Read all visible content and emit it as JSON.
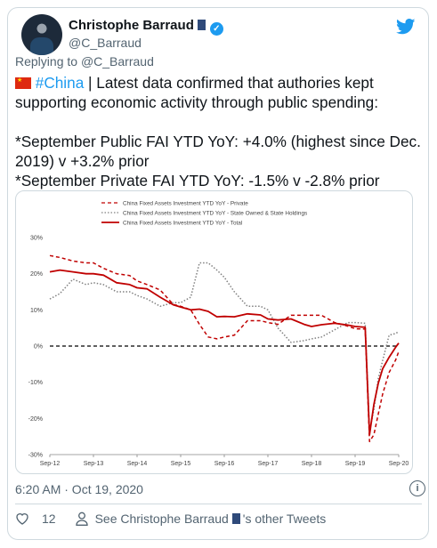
{
  "author": {
    "name": "Christophe Barraud",
    "handle": "@C_Barraud"
  },
  "reply_prefix": "Replying to",
  "reply_handle": "@C_Barraud",
  "tweet": {
    "hashtag": "#China",
    "line1_rest": "| Latest data confirmed that authories kept",
    "line2": "supporting economic activity through public spending:",
    "line3": "*September Public FAI YTD YoY: +4.0% (highest since Dec.",
    "line4": "2019) v +3.2% prior",
    "line5": "*September Private FAI YTD YoY: -1.5% v -2.8% prior"
  },
  "timestamp": "6:20 AM · Oct 19, 2020",
  "like_count": "12",
  "other_tweets_prefix": "See Christophe Barraud",
  "other_tweets_suffix": "'s other Tweets",
  "colors": {
    "accent": "#1d9bf0",
    "series_red": "#c00000",
    "series_grey": "#808080"
  },
  "chart_data": {
    "type": "line",
    "legend": "top-center",
    "x_ticks": [
      "Sep-12",
      "Sep-13",
      "Sep-14",
      "Sep-15",
      "Sep-16",
      "Sep-17",
      "Sep-18",
      "Sep-19",
      "Sep-20"
    ],
    "y_ticks": [
      "30%",
      "20%",
      "10%",
      "0%",
      "-10%",
      "-20%",
      "-30%"
    ],
    "ylim": [
      -30,
      30
    ],
    "xlim": [
      2012.67,
      2020.67
    ],
    "series": [
      {
        "name": "China Fixed Assets Investment YTD YoY - Private",
        "style": "dashed",
        "color": "#c00000",
        "x": [
          2012.67,
          2012.9,
          2013.2,
          2013.5,
          2013.67,
          2013.9,
          2014.2,
          2014.5,
          2014.67,
          2014.9,
          2015.2,
          2015.5,
          2015.67,
          2015.9,
          2016.1,
          2016.3,
          2016.5,
          2016.67,
          2016.9,
          2017.2,
          2017.5,
          2017.67,
          2017.9,
          2018.2,
          2018.5,
          2018.67,
          2018.9,
          2019.2,
          2019.5,
          2019.67,
          2019.9,
          2020.0,
          2020.1,
          2020.2,
          2020.3,
          2020.45,
          2020.6,
          2020.67
        ],
        "y": [
          25,
          24.5,
          23.5,
          23,
          23,
          21.5,
          20,
          19.5,
          18,
          17,
          15.5,
          11.5,
          11,
          10,
          6,
          2.5,
          2,
          2.5,
          3,
          7,
          7,
          6.5,
          6,
          8.5,
          8.5,
          8.5,
          8.5,
          6.5,
          5.5,
          4.8,
          4.7,
          -26.4,
          -24.5,
          -18.8,
          -13.3,
          -7.3,
          -3.8,
          -1.5
        ]
      },
      {
        "name": "China Fixed Assets Investment YTD YoY - State Owned & State Holdings",
        "style": "dotted",
        "color": "#808080",
        "x": [
          2012.67,
          2012.9,
          2013.2,
          2013.5,
          2013.67,
          2013.9,
          2014.2,
          2014.5,
          2014.67,
          2014.9,
          2015.2,
          2015.5,
          2015.67,
          2015.9,
          2016.1,
          2016.3,
          2016.5,
          2016.67,
          2016.9,
          2017.2,
          2017.5,
          2017.67,
          2017.9,
          2018.2,
          2018.5,
          2018.67,
          2018.9,
          2019.2,
          2019.5,
          2019.67,
          2019.9,
          2020.0,
          2020.1,
          2020.2,
          2020.3,
          2020.45,
          2020.6,
          2020.67
        ],
        "y": [
          13,
          14.5,
          18.5,
          17,
          17.5,
          17,
          15,
          15,
          14,
          13,
          11,
          12,
          12,
          13.5,
          23,
          23,
          21,
          19,
          15,
          11,
          11,
          10,
          5,
          1,
          1.5,
          2,
          2.5,
          4.5,
          6.5,
          6.5,
          6.3,
          -23.5,
          -17.5,
          -9,
          -4,
          3,
          3.5,
          4
        ]
      },
      {
        "name": "China Fixed Assets Investment YTD YoY - Total",
        "style": "solid",
        "color": "#c00000",
        "x": [
          2012.67,
          2012.9,
          2013.2,
          2013.5,
          2013.67,
          2013.9,
          2014.2,
          2014.5,
          2014.67,
          2014.9,
          2015.2,
          2015.5,
          2015.67,
          2015.9,
          2016.1,
          2016.3,
          2016.5,
          2016.67,
          2016.9,
          2017.2,
          2017.5,
          2017.67,
          2017.9,
          2018.2,
          2018.5,
          2018.67,
          2018.9,
          2019.2,
          2019.5,
          2019.67,
          2019.9,
          2020.0,
          2020.1,
          2020.2,
          2020.3,
          2020.45,
          2020.6,
          2020.67
        ],
        "y": [
          20.5,
          21,
          20.5,
          20,
          20,
          19.6,
          17.5,
          17,
          16.1,
          15.8,
          13.5,
          11.4,
          10.8,
          10,
          10.2,
          9.6,
          8.1,
          8.2,
          8.1,
          8.9,
          8.6,
          7.5,
          7.2,
          7.5,
          6,
          5.4,
          5.9,
          6.3,
          5.8,
          5.4,
          5.2,
          -24.5,
          -16.1,
          -10.3,
          -6.3,
          -3.1,
          -0.3,
          0.8
        ]
      }
    ],
    "reference_line": {
      "y": 0,
      "style": "dashed",
      "color": "#000000"
    }
  }
}
